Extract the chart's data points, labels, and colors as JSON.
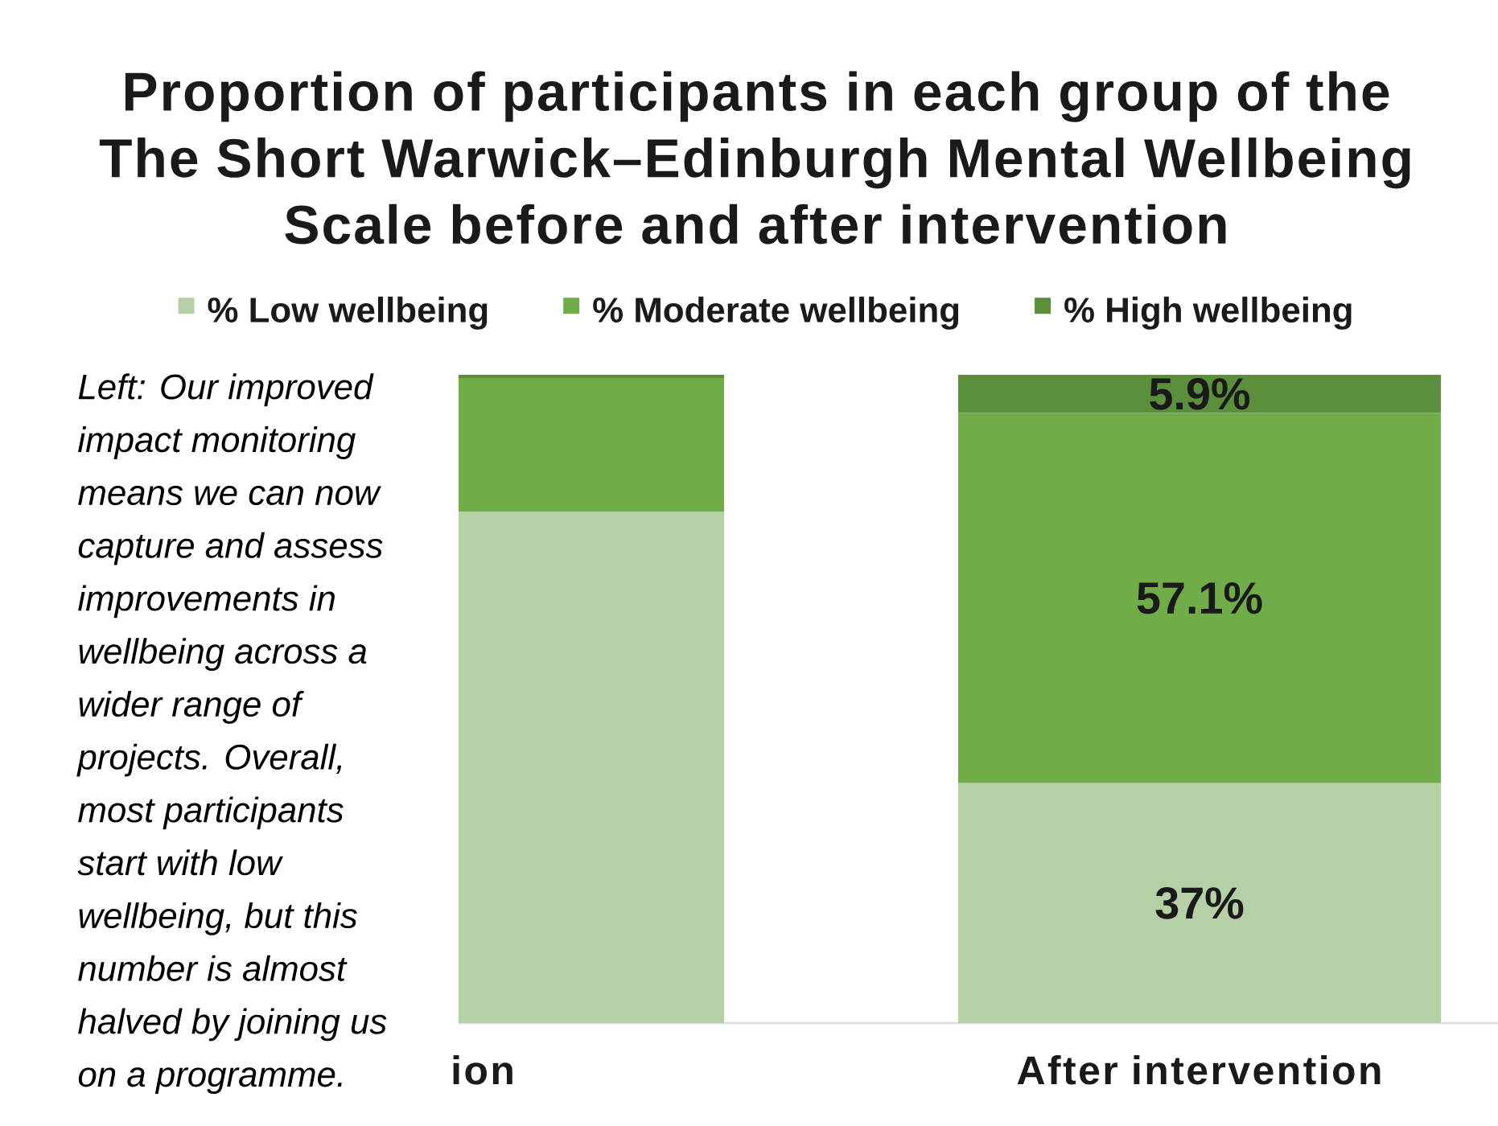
{
  "chart_data": {
    "type": "bar",
    "stacked": true,
    "title": "Proportion of participants in each group of the The Short Warwick–Edinburgh Mental Wellbeing Scale before and after intervention",
    "categories": [
      "ion",
      "After intervention"
    ],
    "series": [
      {
        "name": "% Low wellbeing",
        "color": "#b6d0a6",
        "values": [
          78.9,
          37
        ],
        "value_labels": [
          null,
          "37%"
        ]
      },
      {
        "name": "% Moderate wellbeing",
        "color": "#70ac48",
        "values": [
          20.6,
          57.1
        ],
        "value_labels": [
          null,
          "57.1%"
        ]
      },
      {
        "name": "% High wellbeing",
        "color": "#5b8f3b",
        "values": [
          0.5,
          5.9
        ],
        "value_labels": [
          null,
          "5.9%"
        ]
      }
    ],
    "ylim": [
      0,
      100
    ],
    "tick_labels": "x",
    "legend": "top",
    "annotations": [
      "Left: Our improved impact monitoring means we can now capture and assess improvements in wellbeing across a wider range of projects. Overall, most participants start with low wellbeing, but this number is almost halved by joining us on a programme."
    ]
  }
}
